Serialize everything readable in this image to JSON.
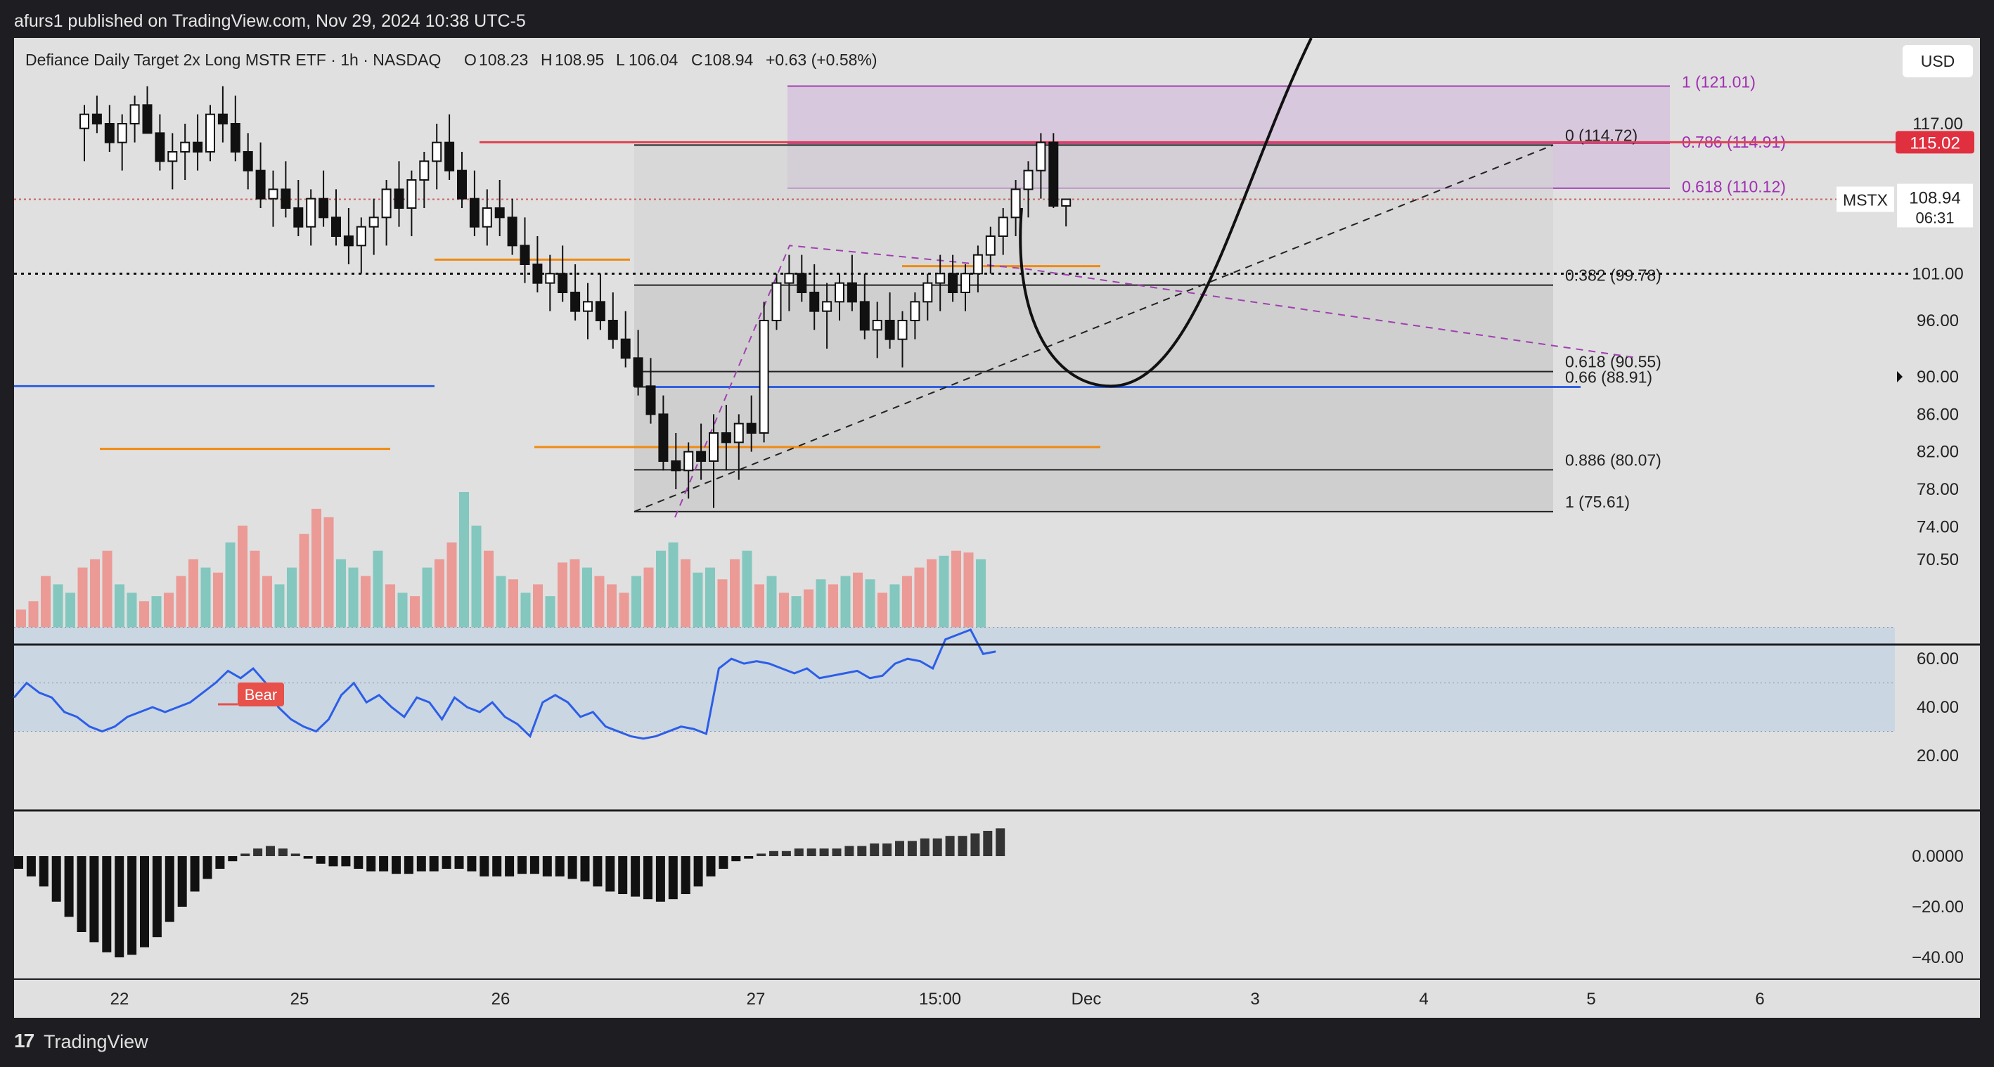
{
  "header": {
    "publisher": "afurs1 published on TradingView.com, Nov 29, 2024 10:38 UTC-5"
  },
  "footer": {
    "logo_glyph": "17",
    "brand": "TradingView"
  },
  "chart_data": {
    "type": "candlestick",
    "symbol_legend": "Defiance Daily Target 2x Long MSTR ETF · 1h · NASDAQ",
    "ohlc": {
      "open_label": "O",
      "open": "108.23",
      "high_label": "H",
      "high": "108.95",
      "low_label": "L",
      "low": "106.04",
      "close_label": "C",
      "close": "108.94",
      "change": "+0.63 (+0.58%)"
    },
    "currency": "USD",
    "ticker": "MSTX",
    "last_price": "108.94",
    "countdown": "06:31",
    "marked_price": "115.02",
    "price_axis": [
      "117.00",
      "101.00",
      "96.00",
      "90.00",
      "86.00",
      "82.00",
      "78.00",
      "74.00",
      "70.50"
    ],
    "x_axis": [
      "22",
      "25",
      "26",
      "27",
      "15:00",
      "Dec",
      "3",
      "4",
      "5",
      "6"
    ],
    "fib_levels": [
      {
        "label": "0 (114.72)",
        "value": 114.72
      },
      {
        "label": "0.382 (99.78)",
        "value": 99.78
      },
      {
        "label": "0.618 (90.55)",
        "value": 90.55
      },
      {
        "label": "0.66 (88.91)",
        "value": 88.91
      },
      {
        "label": "0.886 (80.07)",
        "value": 80.07
      },
      {
        "label": "1 (75.61)",
        "value": 75.61
      }
    ],
    "fib_extension_levels": [
      {
        "label": "1 (121.01)",
        "value": 121.01
      },
      {
        "label": "0.786 (114.91)",
        "value": 114.91
      },
      {
        "label": "0.618 (110.12)",
        "value": 110.12
      }
    ],
    "candles": [
      [
        116.5,
        119,
        113,
        118
      ],
      [
        118,
        120,
        116,
        117
      ],
      [
        117,
        119,
        114,
        115
      ],
      [
        115,
        118,
        112,
        117
      ],
      [
        117,
        120,
        115,
        119
      ],
      [
        119,
        121,
        116,
        116
      ],
      [
        116,
        118,
        112,
        113
      ],
      [
        113,
        116,
        110,
        114
      ],
      [
        114,
        117,
        111,
        115
      ],
      [
        115,
        118,
        112,
        114
      ],
      [
        114,
        119,
        113,
        118
      ],
      [
        118,
        121,
        115,
        117
      ],
      [
        117,
        120,
        113,
        114
      ],
      [
        114,
        116,
        110,
        112
      ],
      [
        112,
        115,
        108,
        109
      ],
      [
        109,
        112,
        106,
        110
      ],
      [
        110,
        113,
        107,
        108
      ],
      [
        108,
        111,
        105,
        106
      ],
      [
        106,
        110,
        104,
        109
      ],
      [
        109,
        112,
        106,
        107
      ],
      [
        107,
        110,
        104,
        105
      ],
      [
        105,
        108,
        102,
        104
      ],
      [
        104,
        107,
        101,
        106
      ],
      [
        106,
        109,
        103,
        107
      ],
      [
        107,
        111,
        104,
        110
      ],
      [
        110,
        113,
        106,
        108
      ],
      [
        108,
        112,
        105,
        111
      ],
      [
        111,
        114,
        108,
        113
      ],
      [
        113,
        117,
        110,
        115
      ],
      [
        115,
        118,
        111,
        112
      ],
      [
        112,
        114,
        108,
        109
      ],
      [
        109,
        112,
        105,
        106
      ],
      [
        106,
        110,
        104,
        108
      ],
      [
        108,
        111,
        105,
        107
      ],
      [
        107,
        109,
        103,
        104
      ],
      [
        104,
        107,
        100,
        102
      ],
      [
        102,
        105,
        99,
        100
      ],
      [
        100,
        103,
        97,
        101
      ],
      [
        101,
        104,
        98,
        99
      ],
      [
        99,
        102,
        96,
        97
      ],
      [
        97,
        100,
        94,
        98
      ],
      [
        98,
        101,
        95,
        96
      ],
      [
        96,
        99,
        93,
        94
      ],
      [
        94,
        97,
        91,
        92
      ],
      [
        92,
        95,
        88,
        89
      ],
      [
        89,
        92,
        85,
        86
      ],
      [
        86,
        88,
        80,
        81
      ],
      [
        81,
        84,
        78,
        80
      ],
      [
        80,
        83,
        77,
        82
      ],
      [
        82,
        85,
        79,
        81
      ],
      [
        81,
        86,
        76,
        84
      ],
      [
        84,
        87,
        80,
        83
      ],
      [
        83,
        86,
        79,
        85
      ],
      [
        85,
        88,
        82,
        84
      ],
      [
        84,
        98,
        83,
        96
      ],
      [
        96,
        101,
        95,
        100
      ],
      [
        100,
        103,
        97,
        101
      ],
      [
        101,
        103,
        98,
        99
      ],
      [
        99,
        102,
        95,
        97
      ],
      [
        97,
        100,
        93,
        98
      ],
      [
        98,
        101,
        96,
        100
      ],
      [
        100,
        103,
        97,
        98
      ],
      [
        98,
        101,
        94,
        95
      ],
      [
        95,
        98,
        92,
        96
      ],
      [
        96,
        99,
        93,
        94
      ],
      [
        94,
        97,
        91,
        96
      ],
      [
        96,
        99,
        94,
        98
      ],
      [
        98,
        101,
        96,
        100
      ],
      [
        100,
        103,
        97,
        101
      ],
      [
        101,
        103,
        98,
        99
      ],
      [
        99,
        102,
        97,
        101
      ],
      [
        101,
        104,
        99,
        103
      ],
      [
        103,
        106,
        101,
        105
      ],
      [
        105,
        108,
        103,
        107
      ],
      [
        107,
        111,
        105,
        110
      ],
      [
        110,
        113,
        107,
        112
      ],
      [
        112,
        116,
        109,
        115
      ],
      [
        115,
        116,
        108,
        108.23
      ],
      [
        108.23,
        108.95,
        106.04,
        108.94
      ]
    ],
    "volume": {
      "values": [
        20,
        25,
        40,
        35,
        30,
        45,
        50,
        55,
        35,
        30,
        25,
        28,
        30,
        40,
        50,
        45,
        42,
        60,
        70,
        55,
        40,
        35,
        45,
        65,
        80,
        75,
        50,
        45,
        40,
        55,
        35,
        30,
        28,
        45,
        50,
        60,
        90,
        70,
        55,
        40,
        38,
        30,
        35,
        28,
        48,
        50,
        45,
        40,
        35,
        30,
        40,
        45,
        55,
        60,
        50,
        42,
        45,
        38,
        50,
        55,
        35,
        40,
        30,
        28,
        32,
        38,
        35,
        40,
        42,
        38,
        30,
        35,
        40,
        45,
        50,
        52,
        55,
        54,
        50
      ],
      "colors": [
        "r",
        "r",
        "r",
        "g",
        "g",
        "r",
        "r",
        "r",
        "g",
        "g",
        "r",
        "g",
        "r",
        "r",
        "r",
        "g",
        "r",
        "g",
        "r",
        "r",
        "r",
        "g",
        "g",
        "r",
        "r",
        "r",
        "g",
        "g",
        "r",
        "g",
        "r",
        "g",
        "r",
        "g",
        "r",
        "r",
        "g",
        "g",
        "r",
        "g",
        "r",
        "g",
        "r",
        "g",
        "r",
        "r",
        "g",
        "r",
        "r",
        "r",
        "g",
        "r",
        "g",
        "g",
        "r",
        "g",
        "g",
        "r",
        "r",
        "g",
        "r",
        "g",
        "r",
        "g",
        "r",
        "g",
        "r",
        "g",
        "r",
        "g",
        "r",
        "g",
        "r",
        "r",
        "r",
        "g",
        "r",
        "r",
        "g"
      ]
    },
    "rsi": {
      "axis": [
        "60.00",
        "40.00",
        "20.00"
      ],
      "signal_label": "Bear",
      "values": [
        44,
        50,
        46,
        44,
        38,
        36,
        32,
        30,
        32,
        36,
        38,
        40,
        38,
        40,
        42,
        46,
        50,
        55,
        52,
        56,
        50,
        40,
        35,
        32,
        30,
        35,
        45,
        50,
        42,
        45,
        40,
        36,
        44,
        42,
        35,
        44,
        40,
        38,
        42,
        36,
        33,
        28,
        42,
        45,
        42,
        36,
        38,
        32,
        30,
        28,
        27,
        28,
        30,
        32,
        31,
        29,
        56,
        60,
        58,
        59,
        58,
        56,
        54,
        56,
        52,
        53,
        54,
        55,
        52,
        53,
        58,
        60,
        59,
        56,
        68,
        70,
        72,
        62,
        63
      ]
    },
    "macd_histogram": {
      "axis": [
        "0.0000",
        "−20.00",
        "−40.00"
      ],
      "values": [
        -5,
        -8,
        -12,
        -18,
        -24,
        -30,
        -34,
        -38,
        -40,
        -39,
        -36,
        -32,
        -26,
        -20,
        -14,
        -9,
        -5,
        -2,
        1,
        3,
        4,
        3,
        1,
        -1,
        -3,
        -4,
        -4,
        -5,
        -6,
        -6,
        -7,
        -7,
        -6,
        -6,
        -5,
        -5,
        -6,
        -8,
        -8,
        -8,
        -7,
        -7,
        -8,
        -8,
        -9,
        -10,
        -12,
        -14,
        -15,
        -16,
        -17,
        -18,
        -17,
        -15,
        -12,
        -8,
        -5,
        -2,
        -1,
        1,
        2,
        2,
        3,
        3,
        3,
        3,
        4,
        4,
        5,
        5,
        6,
        6,
        7,
        7,
        8,
        8,
        9,
        10,
        11
      ]
    }
  }
}
